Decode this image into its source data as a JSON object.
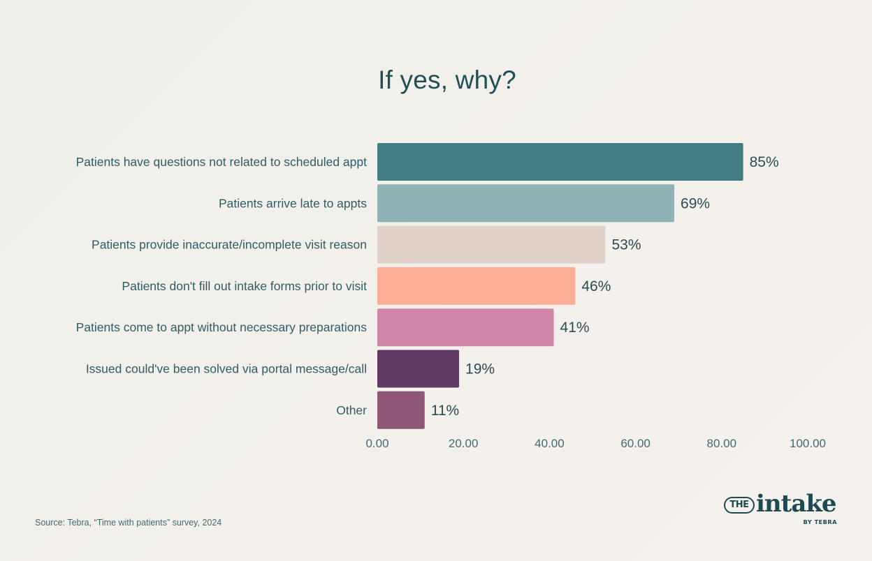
{
  "title": "If yes, why?",
  "source": "Source: Tebra, “Time with patients” survey, 2024",
  "logo": {
    "the": "THE",
    "word": "intake",
    "by": "BY TEBRA"
  },
  "chart_data": {
    "type": "bar",
    "orientation": "horizontal",
    "title": "If yes, why?",
    "categories": [
      "Patients have questions not related to scheduled appt",
      "Patients arrive late to appts",
      "Patients provide inaccurate/incomplete visit reason",
      "Patients don't fill out intake forms prior to visit",
      "Patients come to appt without necessary preparations",
      "Issued could've been solved via portal message/call",
      "Other"
    ],
    "values": [
      85,
      69,
      53,
      46,
      41,
      19,
      11
    ],
    "value_labels": [
      "85%",
      "69%",
      "53%",
      "46%",
      "41%",
      "19%",
      "11%"
    ],
    "colors": [
      "#437d84",
      "#8fb2b5",
      "#e1d3ca",
      "#fdae96",
      "#d086a6",
      "#5e3962",
      "#8d5775"
    ],
    "xlim": [
      0,
      100
    ],
    "x_ticks": [
      0,
      20,
      40,
      60,
      80,
      100
    ],
    "x_tick_labels": [
      "0.00",
      "20.00",
      "40.00",
      "60.00",
      "80.00",
      "100.00"
    ],
    "grid": false,
    "legend": "none"
  }
}
